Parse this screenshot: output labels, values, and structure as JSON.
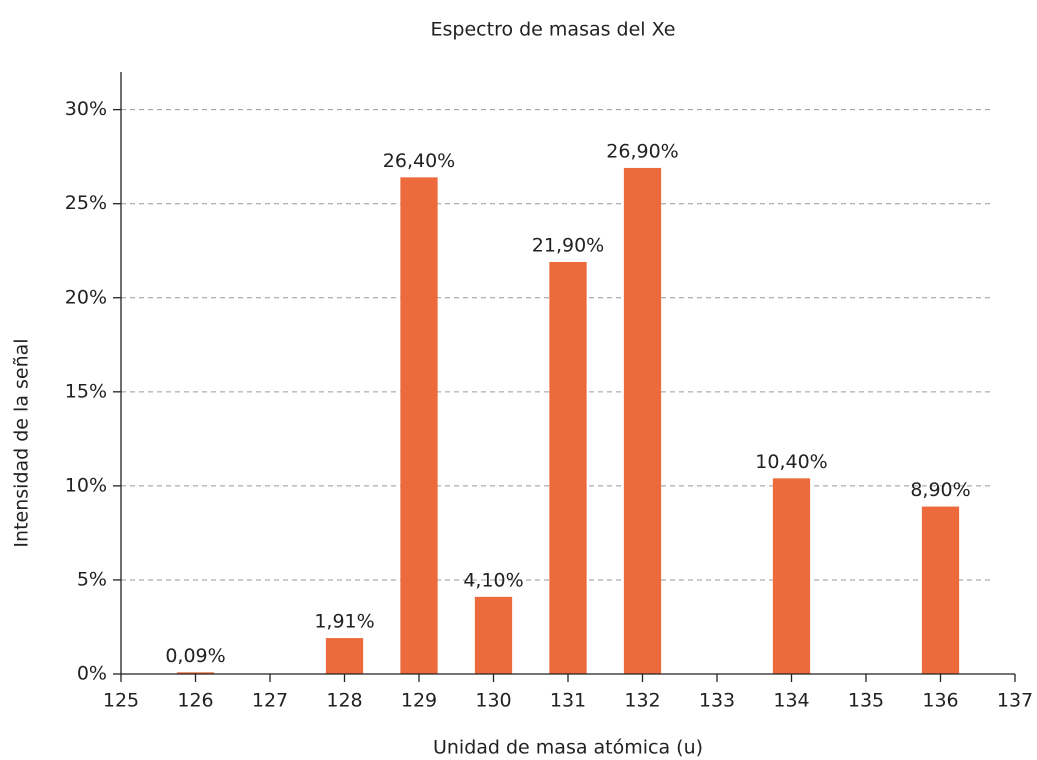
{
  "chart_data": {
    "type": "bar",
    "title": "Espectro de masas del Xe",
    "x_label": "Unidad de masa atómica (u)",
    "y_label": "Intensidad de la señal",
    "x": [
      126,
      128,
      129,
      130,
      131,
      132,
      134,
      136
    ],
    "values": [
      0.09,
      1.91,
      26.4,
      4.1,
      21.9,
      26.9,
      10.4,
      8.9
    ],
    "value_labels": [
      "0,09%",
      "1,91%",
      "26,40%",
      "4,10%",
      "21,90%",
      "26,90%",
      "10,40%",
      "8,90%"
    ],
    "color": "#ec6a3b",
    "xlim": [
      125,
      137
    ],
    "xticks": [
      125,
      126,
      127,
      128,
      129,
      130,
      131,
      132,
      133,
      134,
      135,
      136,
      137
    ],
    "ylim": [
      0,
      32
    ],
    "yticks": [
      {
        "value": 0,
        "label": "0%"
      },
      {
        "value": 5,
        "label": "5%"
      },
      {
        "value": 10,
        "label": "10%"
      },
      {
        "value": 15,
        "label": "15%"
      },
      {
        "value": 20,
        "label": "20%"
      },
      {
        "value": 25,
        "label": "25%"
      },
      {
        "value": 30,
        "label": "30%"
      }
    ],
    "grid": true
  }
}
